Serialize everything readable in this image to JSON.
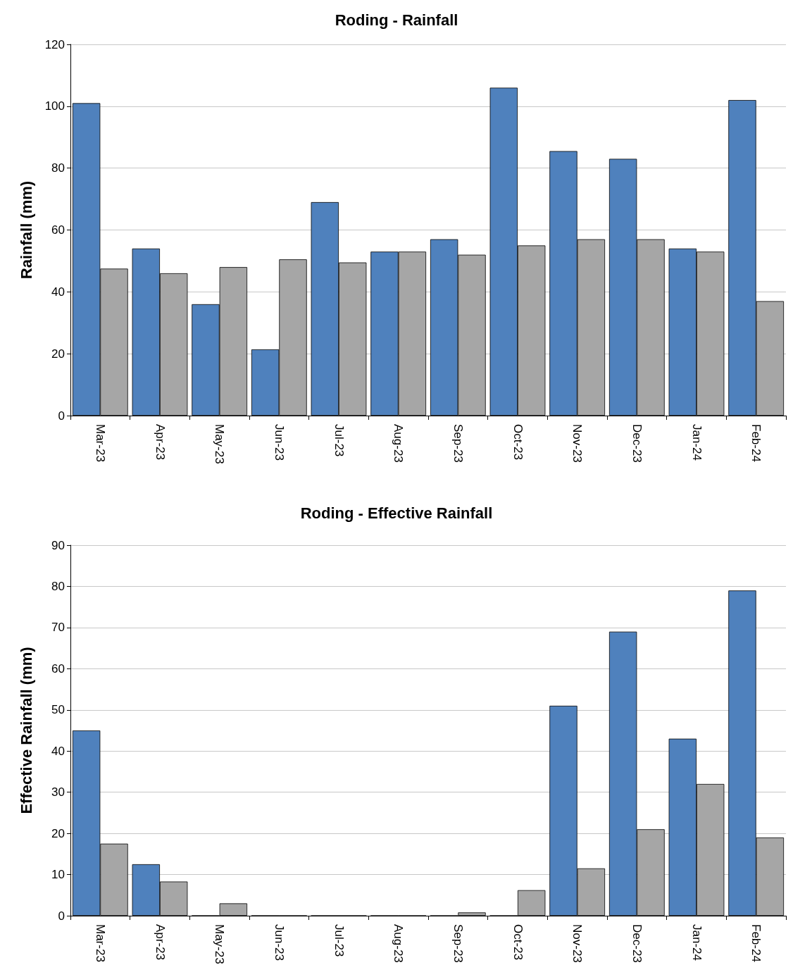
{
  "chart_data": [
    {
      "type": "bar",
      "title": "Roding - Rainfall",
      "ylabel": "Rainfall (mm)",
      "categories": [
        "Mar-23",
        "Apr-23",
        "May-23",
        "Jun-23",
        "Jul-23",
        "Aug-23",
        "Sep-23",
        "Oct-23",
        "Nov-23",
        "Dec-23",
        "Jan-24",
        "Feb-24"
      ],
      "series": [
        {
          "color": "#4f81bd",
          "values": [
            101,
            54,
            36,
            21.4,
            69,
            53,
            57,
            106,
            85.5,
            83,
            54,
            102
          ]
        },
        {
          "color": "#a6a6a6",
          "values": [
            47.5,
            46,
            48,
            50.5,
            49.5,
            53,
            52,
            55,
            57,
            57,
            53,
            37
          ]
        }
      ],
      "ylim": [
        0,
        120
      ],
      "yticks": [
        0,
        20,
        40,
        60,
        80,
        100,
        120
      ],
      "grid": "y"
    },
    {
      "type": "bar",
      "title": "Roding - Effective Rainfall",
      "ylabel": "Effective Rainfall (mm)",
      "categories": [
        "Mar-23",
        "Apr-23",
        "May-23",
        "Jun-23",
        "Jul-23",
        "Aug-23",
        "Sep-23",
        "Oct-23",
        "Nov-23",
        "Dec-23",
        "Jan-24",
        "Feb-24"
      ],
      "series": [
        {
          "color": "#4f81bd",
          "values": [
            45,
            12.5,
            0,
            0,
            0,
            0,
            0,
            0,
            51,
            69,
            43,
            79
          ]
        },
        {
          "color": "#a6a6a6",
          "values": [
            17.5,
            8.3,
            3,
            0,
            0,
            0,
            0.8,
            6.2,
            11.5,
            21,
            32,
            19
          ]
        }
      ],
      "ylim": [
        0,
        90
      ],
      "yticks": [
        0,
        10,
        20,
        30,
        40,
        50,
        60,
        70,
        80,
        90
      ],
      "grid": "y"
    }
  ]
}
